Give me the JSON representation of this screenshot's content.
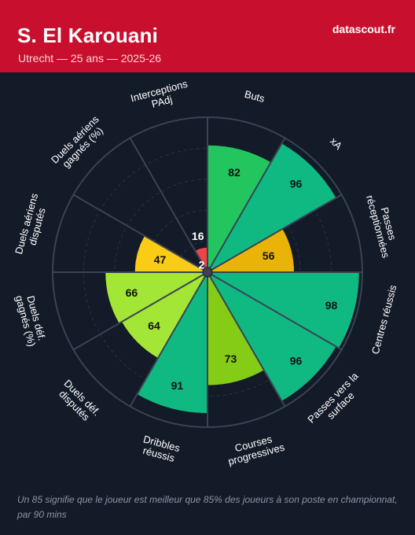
{
  "header": {
    "player": "S. El Karouani",
    "subtitle": "Utrecht — 25 ans — 2025-26",
    "brand": "datascout.fr"
  },
  "footnote": "Un 85 signifie que le joueur est meilleur que 85% des joueurs à son poste en championnat, par 90 mins",
  "chart_data": {
    "type": "polar-bar",
    "scale": [
      0,
      100
    ],
    "grid": "dashed rings",
    "colors": {
      "red": "#e23b4a",
      "yellow": "#f2c12e",
      "amber": "#e6b820",
      "yellowgreen": "#a6e22e",
      "lime": "#84cc16",
      "green": "#22c55e",
      "teal": "#10b981"
    },
    "categories": [
      {
        "label": "Buts",
        "value": 82,
        "color": "#22c55e"
      },
      {
        "label": "xA",
        "value": 96,
        "color": "#10b981"
      },
      {
        "label": "Passes réceptionnées",
        "value": 56,
        "color": "#eab308"
      },
      {
        "label": "Centres réussis",
        "value": 98,
        "color": "#10b981"
      },
      {
        "label": "Passes vers la surface",
        "value": 96,
        "color": "#10b981"
      },
      {
        "label": "Courses progressives",
        "value": 73,
        "color": "#84cc16"
      },
      {
        "label": "Dribbles réussis",
        "value": 91,
        "color": "#10b981"
      },
      {
        "label": "Duels déf. disputés",
        "value": 64,
        "color": "#a3e635"
      },
      {
        "label": "Duels déf. gagnés (%)",
        "value": 66,
        "color": "#a3e635"
      },
      {
        "label": "Duels aériens disputés",
        "value": 47,
        "color": "#facc15"
      },
      {
        "label": "Duels aériens gagnés (%)",
        "value": 2,
        "color": "#ef4444"
      },
      {
        "label": "Interceptions PAdj",
        "value": 16,
        "color": "#ef4444"
      }
    ]
  }
}
